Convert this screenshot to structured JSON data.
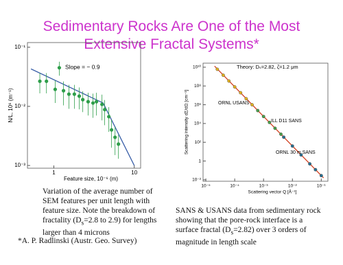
{
  "title": [
    "Sedimentary Rocks Are One of the Most",
    "Extensive Fractal Systems*"
  ],
  "left_caption": [
    "Variation of the average number of SEM features per unit length with feature size. Note the breakdown of fractality (D",
    "s",
    "=2.8 to 2.9) for lengths larger than 4 microns"
  ],
  "right_caption": [
    "SANS & USANS data from sedimentary rock showing that the pore-rock interface is a surface fractal (D",
    "s",
    "=2.82) over 3 orders of magnitude in length scale"
  ],
  "footnote": "*A. P. Radlinski (Austr. Geo. Survey)",
  "chart_data": [
    {
      "type": "scatter",
      "xscale": "log",
      "yscale": "log",
      "xlabel": "Feature size, 10⁻⁶ (m)",
      "ylabel": "N/L, 10⁶ (m⁻¹)",
      "annotation": "Slope = − 0.9",
      "xlim": [
        0.47,
        12
      ],
      "ylim": [
        0.0009,
        0.12
      ],
      "xticks": [
        1,
        10
      ],
      "yticks": [
        {
          "value": 0.001,
          "label": "10⁻³"
        },
        {
          "value": 0.01,
          "label": "10⁻²"
        },
        {
          "value": 0.1,
          "label": "10⁻¹"
        }
      ],
      "color": "#2e9e4a",
      "x": [
        0.67,
        0.81,
        1.17,
        1.04,
        1.32,
        1.54,
        1.8,
        2.07,
        2.29,
        2.67,
        3.07,
        3.39,
        3.97,
        4.29,
        4.83,
        5.22,
        5.77,
        6.36
      ],
      "values": [
        0.0266,
        0.0266,
        0.045,
        0.0194,
        0.0184,
        0.0161,
        0.0161,
        0.0149,
        0.013,
        0.012,
        0.0114,
        0.012,
        0.0108,
        0.0088,
        0.0067,
        0.004,
        0.003,
        0.0023
      ],
      "yerr": [
        0.01,
        0.01,
        0.012,
        0.008,
        0.008,
        0.007,
        0.007,
        0.006,
        0.005,
        0.005,
        0.005,
        0.005,
        0.005,
        0.004,
        0.003,
        0.002,
        0.0015,
        0.001
      ],
      "fit": {
        "color": "#3a5fa8",
        "x": [
          0.52,
          4.1,
          10
        ],
        "values": [
          0.043,
          0.0114,
          0.001
        ]
      }
    },
    {
      "type": "scatter",
      "xscale": "log",
      "yscale": "log",
      "xlabel": "Scattering vector Q [Å⁻¹]",
      "ylabel": "Scattering intensity dΣ/dΩ [cm⁻¹]",
      "xlim": [
        8e-06,
        0.17
      ],
      "ylim": [
        0.007,
        27000000000
      ],
      "xticks": [
        {
          "value": 1e-05,
          "label": "10⁻⁵"
        },
        {
          "value": 0.0001,
          "label": "10⁻⁴"
        },
        {
          "value": 0.001,
          "label": "10⁻³"
        },
        {
          "value": 0.01,
          "label": "10⁻²"
        },
        {
          "value": 0.1,
          "label": "10⁻¹"
        }
      ],
      "yticks": [
        {
          "value": 0.01,
          "label": "10⁻²"
        },
        1,
        {
          "value": 100,
          "label": "10²"
        },
        {
          "value": 10000,
          "label": "10⁴"
        },
        {
          "value": 1000000,
          "label": "10⁶"
        },
        {
          "value": 100000000,
          "label": "10⁸"
        },
        {
          "value": 10000000000,
          "label": "10¹⁰"
        }
      ],
      "theory": {
        "label": "Theory: Dₛ=2.82, ζ=1.2 μm",
        "color": "#d04020",
        "x": [
          2e-05,
          0.12
        ],
        "values": [
          13000000000,
          0.016
        ]
      },
      "series": [
        {
          "name": "ORNL USANS",
          "color": "#e0b020",
          "x": [
            2.5e-05,
            4e-05,
            6.3e-05,
            0.0001,
            0.00016,
            0.00025,
            0.0004
          ],
          "values": [
            6000000000,
            1400000000,
            340000000,
            80000000,
            19000000,
            4400000,
            1000000
          ]
        },
        {
          "name": "ILL D11 SANS",
          "color": "#4a9e4a",
          "x": [
            0.00063,
            0.001,
            0.0016,
            0.0025,
            0.004
          ],
          "values": [
            240000,
            56000,
            13000,
            3100,
            720
          ]
        },
        {
          "name": "ORNL 30 m SANS",
          "color": "#2a6f8f",
          "x": [
            0.005,
            0.01,
            0.02,
            0.04,
            0.063,
            0.1
          ],
          "values": [
            350,
            40,
            4.5,
            0.5,
            0.12,
            0.028
          ]
        }
      ]
    }
  ]
}
